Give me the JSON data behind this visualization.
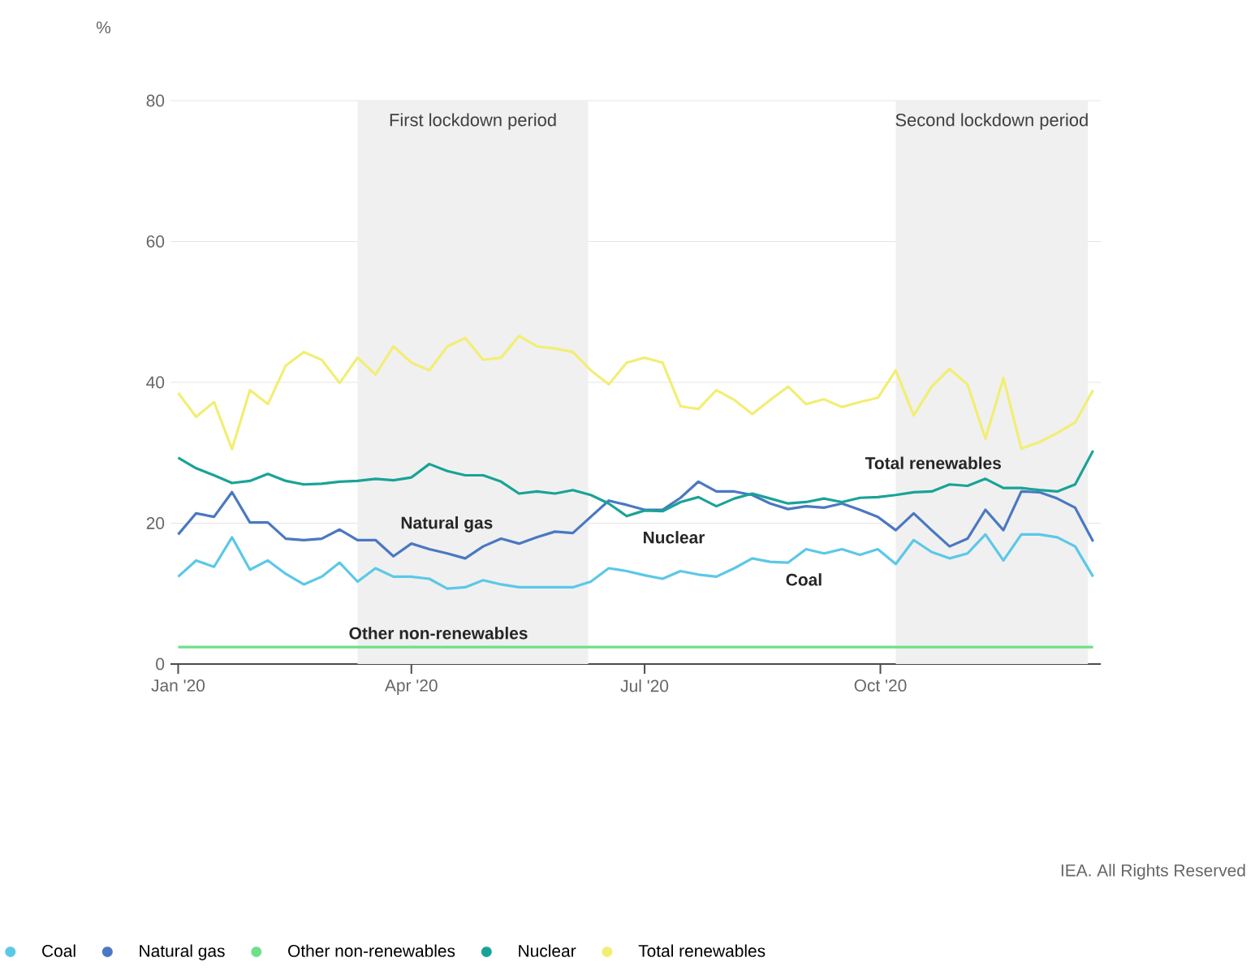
{
  "chart_data": {
    "type": "line",
    "ylabel": "%",
    "xlim": [
      "2019-12-29",
      "2020-12-26"
    ],
    "ylim": [
      0,
      80
    ],
    "yticks": [
      0,
      20,
      40,
      60,
      80
    ],
    "xticks": [
      {
        "value": "2020-01-01",
        "label": "Jan '20"
      },
      {
        "value": "2020-04-01",
        "label": "Apr '20"
      },
      {
        "value": "2020-07-01",
        "label": "Jul '20"
      },
      {
        "value": "2020-10-01",
        "label": "Oct '20"
      }
    ],
    "grid": "y",
    "legend": "bottom",
    "line_style": "solid",
    "bands": [
      {
        "axis": "x",
        "from": "2020-03-11",
        "to": "2020-06-09",
        "label": "First lockdown period",
        "color": "#f0f0f0"
      },
      {
        "axis": "x",
        "from": "2020-10-07",
        "to": "2020-12-21",
        "label": "Second lockdown period",
        "color": "#f0f0f0"
      }
    ],
    "annotations": [
      "Natural gas",
      "Nuclear",
      "Coal",
      "Total renewables",
      "Other non-renewables",
      "IEA. All Rights Reserved"
    ],
    "x": [
      "2020-01-01",
      "2020-01-08",
      "2020-01-15",
      "2020-01-22",
      "2020-01-29",
      "2020-02-05",
      "2020-02-12",
      "2020-02-19",
      "2020-02-26",
      "2020-03-04",
      "2020-03-11",
      "2020-03-18",
      "2020-03-25",
      "2020-04-01",
      "2020-04-08",
      "2020-04-15",
      "2020-04-22",
      "2020-04-29",
      "2020-05-06",
      "2020-05-13",
      "2020-05-20",
      "2020-05-27",
      "2020-06-03",
      "2020-06-10",
      "2020-06-17",
      "2020-06-24",
      "2020-07-01",
      "2020-07-08",
      "2020-07-15",
      "2020-07-22",
      "2020-07-29",
      "2020-08-05",
      "2020-08-12",
      "2020-08-19",
      "2020-08-26",
      "2020-09-02",
      "2020-09-09",
      "2020-09-16",
      "2020-09-23",
      "2020-09-30",
      "2020-10-07",
      "2020-10-14",
      "2020-10-21",
      "2020-10-28",
      "2020-11-04",
      "2020-11-11",
      "2020-11-18",
      "2020-11-25",
      "2020-12-02",
      "2020-12-09",
      "2020-12-16",
      "2020-12-23"
    ],
    "series": [
      {
        "name": "Coal",
        "color": "#5bc8e8",
        "values": [
          12.4,
          14.7,
          13.8,
          18.0,
          13.4,
          14.7,
          12.8,
          11.3,
          12.4,
          14.4,
          11.7,
          13.6,
          12.4,
          12.4,
          12.1,
          10.7,
          10.9,
          11.9,
          11.3,
          10.9,
          10.9,
          10.9,
          10.9,
          11.7,
          13.6,
          13.2,
          12.6,
          12.1,
          13.2,
          12.7,
          12.4,
          13.6,
          15.0,
          14.5,
          14.4,
          16.3,
          15.7,
          16.3,
          15.5,
          16.3,
          14.2,
          17.6,
          15.9,
          15.0,
          15.7,
          18.4,
          14.7,
          18.4,
          18.4,
          18.0,
          16.7,
          12.4
        ]
      },
      {
        "name": "Natural gas",
        "color": "#4a78c2",
        "values": [
          18.4,
          21.4,
          20.9,
          24.4,
          20.1,
          20.1,
          17.8,
          17.6,
          17.8,
          19.1,
          17.6,
          17.6,
          15.3,
          17.1,
          16.3,
          15.7,
          15.0,
          16.7,
          17.8,
          17.1,
          18.0,
          18.8,
          18.6,
          20.9,
          23.2,
          22.6,
          21.9,
          21.9,
          23.6,
          25.9,
          24.5,
          24.5,
          24.0,
          22.8,
          22.0,
          22.4,
          22.2,
          22.8,
          21.9,
          20.9,
          19.0,
          21.4,
          19.0,
          16.7,
          17.8,
          21.9,
          19.0,
          24.5,
          24.4,
          23.5,
          22.2,
          17.4
        ]
      },
      {
        "name": "Other non-renewables",
        "color": "#6ee08a",
        "values": [
          2.4,
          2.4,
          2.4,
          2.4,
          2.4,
          2.4,
          2.4,
          2.4,
          2.4,
          2.4,
          2.4,
          2.4,
          2.4,
          2.4,
          2.4,
          2.4,
          2.4,
          2.4,
          2.4,
          2.4,
          2.4,
          2.4,
          2.4,
          2.4,
          2.4,
          2.4,
          2.4,
          2.4,
          2.4,
          2.4,
          2.4,
          2.4,
          2.4,
          2.4,
          2.4,
          2.4,
          2.4,
          2.4,
          2.4,
          2.4,
          2.4,
          2.4,
          2.4,
          2.4,
          2.4,
          2.4,
          2.4,
          2.4,
          2.4,
          2.4,
          2.4,
          2.4
        ]
      },
      {
        "name": "Nuclear",
        "color": "#19a397",
        "values": [
          29.3,
          27.8,
          26.8,
          25.7,
          26.0,
          27.0,
          26.0,
          25.5,
          25.6,
          25.9,
          26.0,
          26.3,
          26.1,
          26.5,
          28.4,
          27.4,
          26.8,
          26.8,
          25.9,
          24.2,
          24.5,
          24.2,
          24.7,
          24.0,
          22.8,
          21.0,
          21.8,
          21.7,
          23.0,
          23.7,
          22.4,
          23.5,
          24.2,
          23.5,
          22.8,
          23.0,
          23.5,
          23.0,
          23.6,
          23.7,
          24.0,
          24.4,
          24.5,
          25.5,
          25.3,
          26.3,
          25.0,
          25.0,
          24.7,
          24.5,
          25.5,
          30.3
        ]
      },
      {
        "name": "Total renewables",
        "color": "#f2ee74",
        "values": [
          38.5,
          35.1,
          37.2,
          30.5,
          38.9,
          36.9,
          42.4,
          44.3,
          43.2,
          39.9,
          43.5,
          41.1,
          45.1,
          42.8,
          41.7,
          45.1,
          46.3,
          43.2,
          43.5,
          46.6,
          45.1,
          44.8,
          44.3,
          41.7,
          39.7,
          42.8,
          43.5,
          42.8,
          36.6,
          36.2,
          38.9,
          37.5,
          35.5,
          37.5,
          39.4,
          36.9,
          37.6,
          36.5,
          37.2,
          37.8,
          41.7,
          35.3,
          39.4,
          41.9,
          39.7,
          32.0,
          40.6,
          30.6,
          31.5,
          32.8,
          34.3,
          38.9
        ]
      }
    ]
  }
}
